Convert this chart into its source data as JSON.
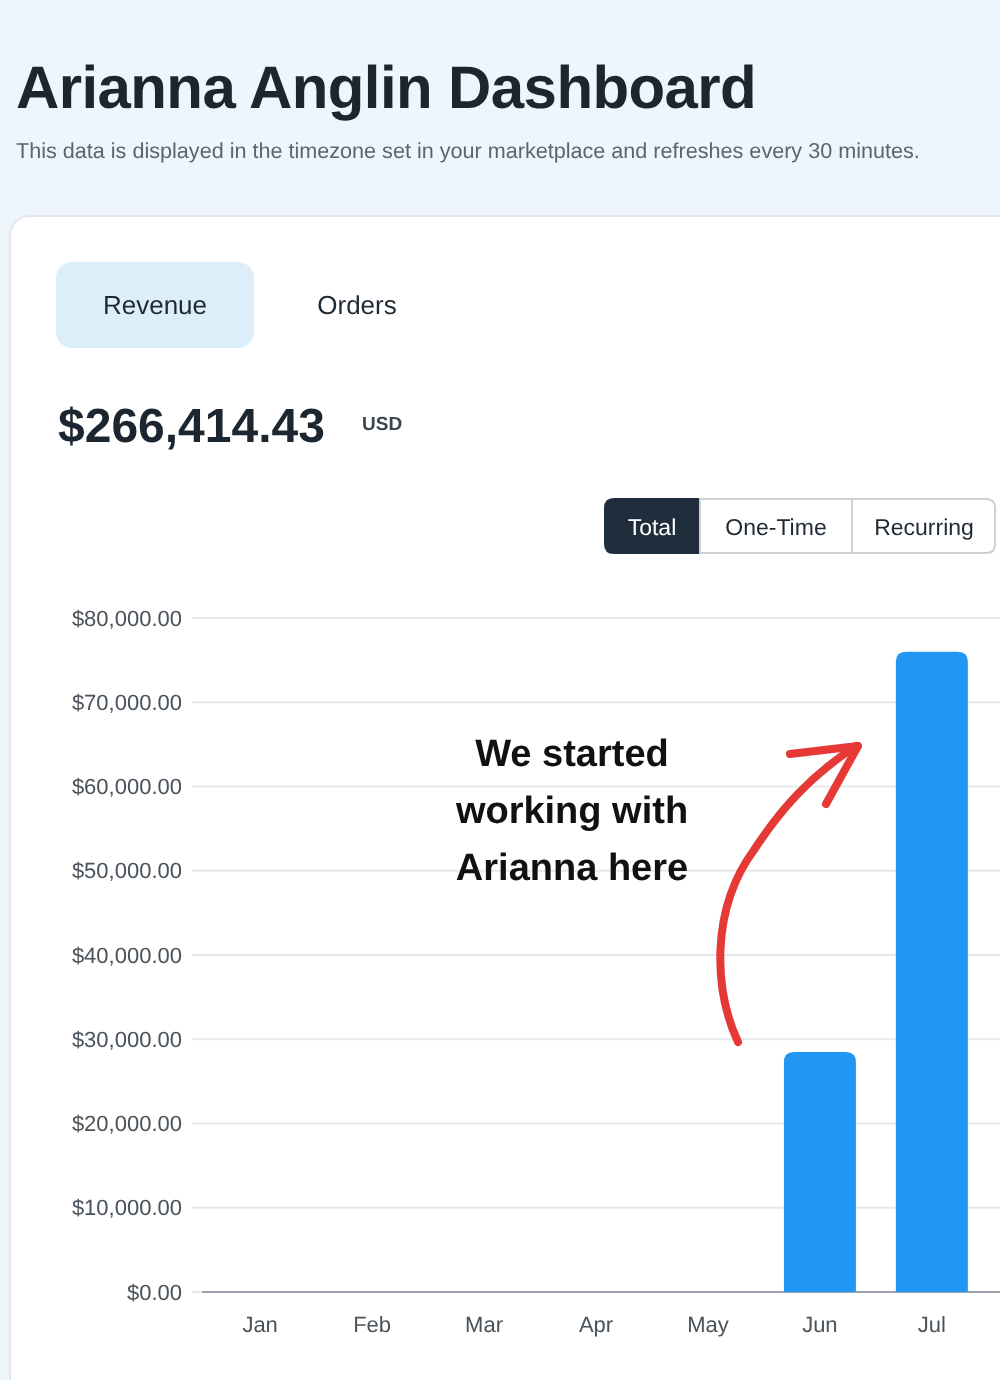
{
  "chart_data": {
    "type": "bar",
    "title": "Arianna Anglin Dashboard",
    "subtitle": "This data is displayed in the timezone set in your marketplace and refreshes every 30 minutes.",
    "categories": [
      "Jan",
      "Feb",
      "Mar",
      "Apr",
      "May",
      "Jun",
      "Jul"
    ],
    "values": [
      0,
      0,
      0,
      0,
      0,
      28500,
      76000
    ],
    "color": "#2196f3",
    "ylim": [
      0,
      80000
    ],
    "yticks": [
      {
        "value": 0,
        "label": "$0.00"
      },
      {
        "value": 10000,
        "label": "$10,000.00"
      },
      {
        "value": 20000,
        "label": "$20,000.00"
      },
      {
        "value": 30000,
        "label": "$30,000.00"
      },
      {
        "value": 40000,
        "label": "$40,000.00"
      },
      {
        "value": 50000,
        "label": "$50,000.00"
      },
      {
        "value": 60000,
        "label": "$60,000.00"
      },
      {
        "value": 70000,
        "label": "$70,000.00"
      },
      {
        "value": 80000,
        "label": "$80,000.00"
      }
    ],
    "grid": "y",
    "annotations": [
      "Revenue",
      "Orders",
      "$266,414.43",
      "USD",
      "Total",
      "One-Time",
      "Recurring",
      "We started working with Arianna here"
    ]
  }
}
